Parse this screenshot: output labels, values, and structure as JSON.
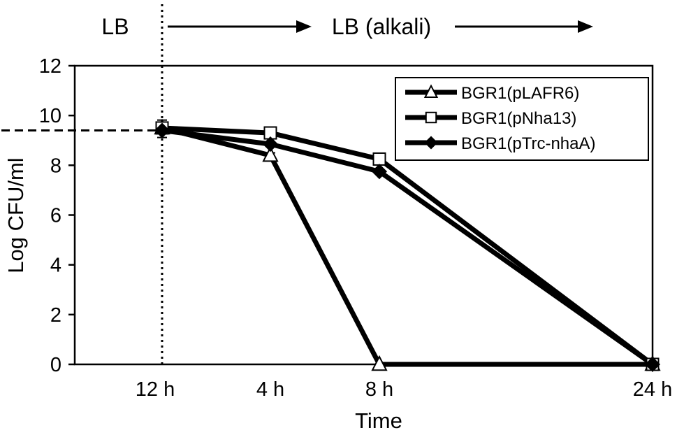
{
  "chart_data": {
    "type": "line",
    "title": "",
    "xlabel": "Time",
    "ylabel": "Log CFU/ml",
    "x": [
      "12 h",
      "4 h",
      "8 h",
      "24 h"
    ],
    "x_hours_after_shift": [
      0,
      4,
      8,
      24
    ],
    "ylim": [
      0,
      12
    ],
    "yticks": [
      "0",
      "2",
      "4",
      "6",
      "8",
      "10",
      "12"
    ],
    "grid": false,
    "legend_position": "top-right",
    "phases": [
      {
        "label": "LB",
        "arrow": false
      },
      {
        "label": "LB (alkali)",
        "arrow": true
      }
    ],
    "reference_level": 9.4,
    "series": [
      {
        "name": "BGR1(pLAFR6)",
        "marker": "open-triangle",
        "values": [
          9.5,
          8.4,
          0,
          0
        ]
      },
      {
        "name": "BGR1(pNha13)",
        "marker": "open-square",
        "values": [
          9.5,
          9.3,
          8.25,
          0
        ]
      },
      {
        "name": "BGR1(pTrc-nhaA)",
        "marker": "filled-diamond",
        "values": [
          9.4,
          8.85,
          7.75,
          0
        ]
      }
    ],
    "error_bars": [
      0.35,
      0.35,
      0,
      0
    ]
  },
  "colors": {
    "line": "#000000",
    "marker_fill_open": "#ffffff",
    "marker_fill_solid": "#000000",
    "background": "#ffffff"
  }
}
